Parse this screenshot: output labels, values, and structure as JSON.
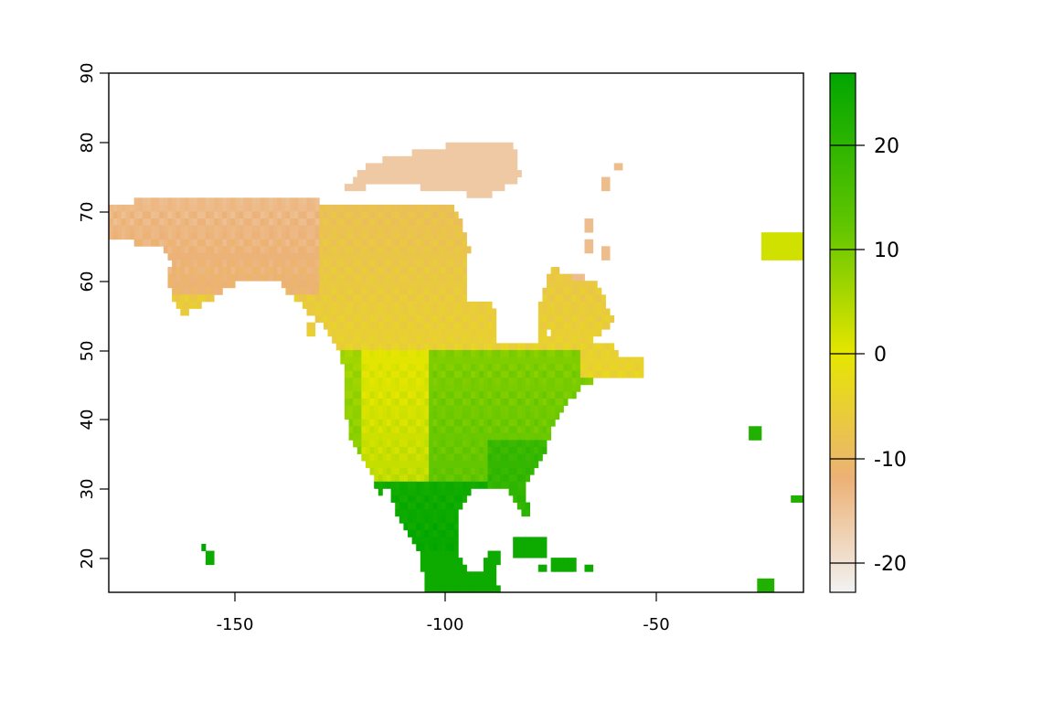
{
  "chart_data": {
    "type": "heatmap",
    "title": "",
    "xlabel": "",
    "ylabel": "",
    "xlim": [
      -180,
      -15
    ],
    "ylim": [
      15,
      90
    ],
    "x_ticks": [
      "-150",
      "-100",
      "-50"
    ],
    "y_ticks": [
      "20",
      "30",
      "40",
      "50",
      "60",
      "70",
      "80",
      "90"
    ],
    "colorbar": {
      "min": -23,
      "max": 27,
      "ticks": [
        "-20",
        "-10",
        "0",
        "10",
        "20"
      ],
      "colors": [
        "#f2f2f2",
        "#ecb176",
        "#e6e600",
        "#63c600",
        "#00a600"
      ]
    },
    "grid": false,
    "legend_position": "right",
    "raster_regions": [
      {
        "name": "Arctic islands",
        "value": -16
      },
      {
        "name": "Alaska / Yukon",
        "value": -9
      },
      {
        "name": "Canadian interior",
        "value": -4
      },
      {
        "name": "Pacific Northwest",
        "value": 7
      },
      {
        "name": "Rocky Mountains",
        "value": 1
      },
      {
        "name": "Great Plains",
        "value": 10
      },
      {
        "name": "Southeastern US",
        "value": 17
      },
      {
        "name": "Mexico",
        "value": 22
      },
      {
        "name": "Caribbean / Central America",
        "value": 25
      },
      {
        "name": "Labrador / Newfoundland",
        "value": -4
      },
      {
        "name": "Greenland coast",
        "value": -14
      },
      {
        "name": "Iceland",
        "value": 2
      },
      {
        "name": "Azores / Canary islands",
        "value": 22
      }
    ]
  }
}
